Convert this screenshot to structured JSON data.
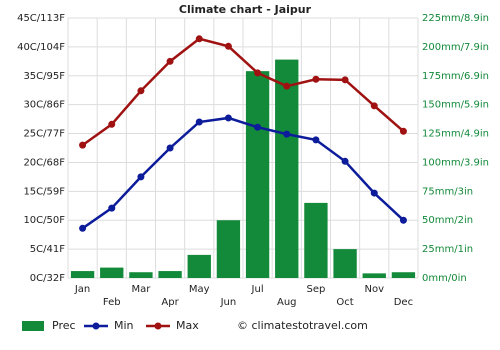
{
  "chart_data": {
    "type": "bar",
    "title": "Climate chart - Jaipur",
    "categories": [
      "Jan",
      "Feb",
      "Mar",
      "Apr",
      "May",
      "Jun",
      "Jul",
      "Aug",
      "Sep",
      "Oct",
      "Nov",
      "Dec"
    ],
    "series": [
      {
        "name": "Prec",
        "type": "bar",
        "axis": "y2",
        "color": "#13893a",
        "values": [
          6,
          9,
          5,
          6,
          20,
          50,
          179,
          189,
          65,
          25,
          4,
          5
        ]
      },
      {
        "name": "Min",
        "type": "line",
        "color": "#0c1c9a",
        "values": [
          8.6,
          12.1,
          17.5,
          22.5,
          27,
          27.7,
          26.1,
          24.9,
          23.9,
          20.2,
          14.7,
          10
        ]
      },
      {
        "name": "Max",
        "type": "line",
        "color": "#a01212",
        "values": [
          23,
          26.6,
          32.4,
          37.5,
          41.4,
          40.1,
          35.5,
          33.2,
          34.4,
          34.3,
          29.8,
          25.4
        ]
      }
    ],
    "ylim": [
      0,
      45
    ],
    "yticks": [
      {
        "value": 0,
        "label": "0C/32F"
      },
      {
        "value": 5,
        "label": "5C/41F"
      },
      {
        "value": 10,
        "label": "10C/50F"
      },
      {
        "value": 15,
        "label": "15C/59F"
      },
      {
        "value": 20,
        "label": "20C/68F"
      },
      {
        "value": 25,
        "label": "25C/77F"
      },
      {
        "value": 30,
        "label": "30C/86F"
      },
      {
        "value": 35,
        "label": "35C/95F"
      },
      {
        "value": 40,
        "label": "40C/104F"
      },
      {
        "value": 45,
        "label": "45C/113F"
      }
    ],
    "y2lim": [
      0,
      225
    ],
    "y2ticks": [
      {
        "value": 0,
        "label": "0mm/0in"
      },
      {
        "value": 25,
        "label": "25mm/1in"
      },
      {
        "value": 50,
        "label": "50mm/2in"
      },
      {
        "value": 75,
        "label": "75mm/3in"
      },
      {
        "value": 100,
        "label": "100mm/3.9in"
      },
      {
        "value": 125,
        "label": "125mm/4.9in"
      },
      {
        "value": 150,
        "label": "150mm/5.9in"
      },
      {
        "value": 175,
        "label": "175mm/6.9in"
      },
      {
        "value": 200,
        "label": "200mm/7.9in"
      },
      {
        "value": 225,
        "label": "225mm/8.9in"
      }
    ],
    "grid": true,
    "credit": "© climatestotravel.com"
  }
}
